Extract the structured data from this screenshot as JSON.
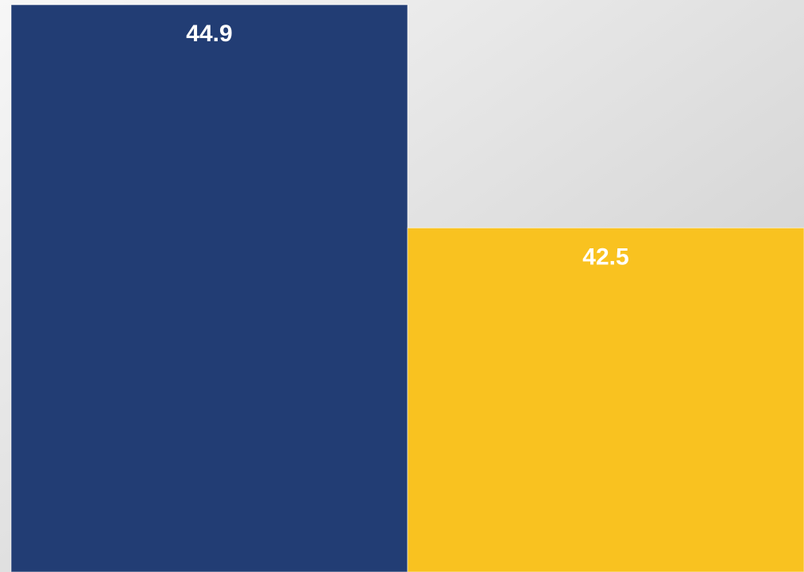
{
  "chart_data": {
    "type": "bar",
    "categories": [
      "",
      ""
    ],
    "values": [
      44.9,
      42.5
    ],
    "value_labels": [
      "44.9",
      "42.5"
    ],
    "colors": [
      "#223d74",
      "#f9c220"
    ],
    "ylim": [
      38.8,
      44.9
    ],
    "grid": false,
    "legend": "none",
    "title": "",
    "xlabel": "",
    "ylabel": ""
  },
  "background": {
    "gradient_top": "#f7f7f7",
    "gradient_bottom": "#c9c9c9"
  }
}
